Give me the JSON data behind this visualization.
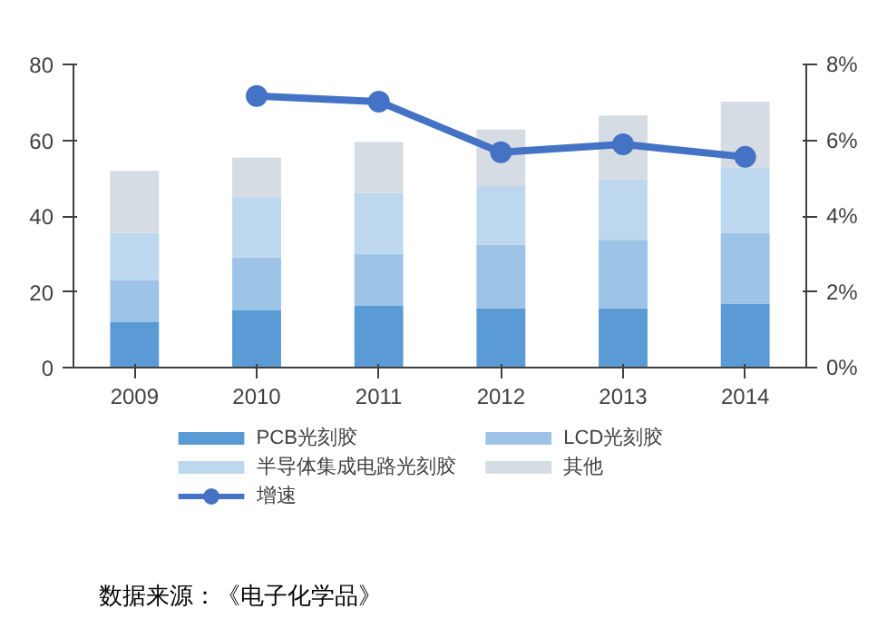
{
  "chart_data": {
    "type": "bar",
    "stacked": true,
    "categories": [
      "2009",
      "2010",
      "2011",
      "2012",
      "2013",
      "2014"
    ],
    "series": [
      {
        "name": "PCB光刻胶",
        "color": "#5b9bd5",
        "values": [
          12.0,
          15.1,
          16.3,
          15.7,
          15.7,
          16.9
        ]
      },
      {
        "name": "LCD光刻胶",
        "color": "#9dc3e6",
        "values": [
          11.1,
          14.0,
          13.7,
          16.7,
          18.0,
          18.6
        ]
      },
      {
        "name": "半导体集成电路光刻胶",
        "color": "#bdd7ee",
        "values": [
          12.4,
          15.7,
          16.1,
          15.5,
          15.9,
          17.2
        ]
      },
      {
        "name": "其他",
        "color": "#d6dce4",
        "values": [
          16.4,
          10.6,
          13.4,
          14.9,
          16.9,
          17.5
        ]
      },
      {
        "name": "增速",
        "color": "#4472c4",
        "type": "line",
        "axis": "y2",
        "marker": "circle",
        "values": [
          null,
          7.17,
          7.02,
          5.68,
          5.89,
          5.56
        ]
      }
    ],
    "ylim": [
      0,
      80
    ],
    "yticks": [
      0,
      20,
      40,
      60,
      80
    ],
    "y2lim": [
      0,
      8
    ],
    "y2ticks": [
      {
        "value": 0,
        "label": "0%"
      },
      {
        "value": 2,
        "label": "2%"
      },
      {
        "value": 4,
        "label": "4%"
      },
      {
        "value": 6,
        "label": "6%"
      },
      {
        "value": 8,
        "label": "8%"
      }
    ],
    "grid": false,
    "legend": "bottom",
    "annotations": [
      "数据来源：《电子化学品》"
    ]
  }
}
